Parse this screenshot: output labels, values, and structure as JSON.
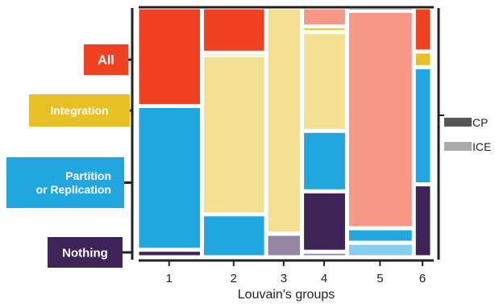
{
  "chart_data": {
    "type": "mosaic",
    "xlabel": "Louvain's groups",
    "groups": [
      "1",
      "2",
      "3",
      "4",
      "5",
      "6"
    ],
    "group_widths": [
      0.248,
      0.245,
      0.137,
      0.172,
      0.255,
      0.07
    ],
    "y_categories": [
      "All",
      "Integration",
      "Partition\nor Replication",
      "Nothing"
    ],
    "category_colors": {
      "All": "#f04123",
      "Integration": "#e6c024",
      "Partition\nor Replication": "#22a6e0",
      "Nothing": "#3f2458"
    },
    "sub_categories": [
      "CP",
      "ICE"
    ],
    "sub_category_colors": {
      "CP": "#555555",
      "ICE": "#aaaaaa"
    },
    "legend": {
      "placement": "right",
      "entries": [
        "CP",
        "ICE"
      ]
    },
    "grid": false,
    "tiles": [
      {
        "group": "1",
        "category": "All",
        "sub": "CP",
        "value": 0.395
      },
      {
        "group": "1",
        "category": "Partition\nor Replication",
        "sub": "CP",
        "value": 0.575
      },
      {
        "group": "1",
        "category": "Nothing",
        "sub": "CP",
        "value": 0.03
      },
      {
        "group": "2",
        "category": "All",
        "sub": "CP",
        "value": 0.18
      },
      {
        "group": "2",
        "category": "Integration",
        "sub": "CP",
        "value": 0.01
      },
      {
        "group": "2",
        "category": "Integration",
        "sub": "ICE",
        "value": 0.63
      },
      {
        "group": "2",
        "category": "Partition\nor Replication",
        "sub": "CP",
        "value": 0.17
      },
      {
        "group": "3",
        "category": "Integration",
        "sub": "ICE",
        "value": 0.87
      },
      {
        "group": "3",
        "category": "Nothing",
        "sub": "ICE",
        "value": 0.09
      },
      {
        "group": "4",
        "category": "All",
        "sub": "ICE",
        "value": 0.07
      },
      {
        "group": "4",
        "category": "Integration",
        "sub": "CP",
        "value": 0.02
      },
      {
        "group": "4",
        "category": "Integration",
        "sub": "ICE",
        "value": 0.36
      },
      {
        "group": "4",
        "category": "Partition\nor Replication",
        "sub": "CP",
        "value": 0.22
      },
      {
        "group": "4",
        "category": "Nothing",
        "sub": "CP",
        "value": 0.22
      },
      {
        "group": "4",
        "category": "Nothing",
        "sub": "ICE",
        "value": 0.02
      },
      {
        "group": "5",
        "category": "All",
        "sub": "CP",
        "value": 0.015
      },
      {
        "group": "5",
        "category": "All",
        "sub": "ICE",
        "value": 0.9
      },
      {
        "group": "5",
        "category": "Partition\nor Replication",
        "sub": "CP",
        "value": 0.06
      },
      {
        "group": "5",
        "category": "Partition\nor Replication",
        "sub": "ICE",
        "value": 0.06
      },
      {
        "group": "6",
        "category": "All",
        "sub": "CP",
        "value": 0.17
      },
      {
        "group": "6",
        "category": "Integration",
        "sub": "CP",
        "value": 0.06
      },
      {
        "group": "6",
        "category": "Partition\nor Replication",
        "sub": "CP",
        "value": 0.45
      },
      {
        "group": "6",
        "category": "Nothing",
        "sub": "CP",
        "value": 0.28
      }
    ]
  }
}
